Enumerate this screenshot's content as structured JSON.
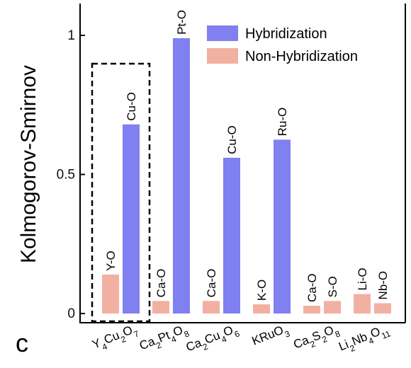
{
  "chart_data": {
    "type": "bar",
    "title": "",
    "panel_label": "c",
    "xlabel": "",
    "ylabel": "Kolmogorov-Smirnov",
    "ylim": [
      0,
      1.05
    ],
    "yticks": [
      0,
      0.5,
      1
    ],
    "ytick_labels": [
      "0",
      "0.5",
      "1"
    ],
    "categories": [
      {
        "parts": [
          [
            "Y",
            "n"
          ],
          [
            "4",
            "s"
          ],
          [
            "Cu",
            "n"
          ],
          [
            "2",
            "s"
          ],
          [
            "O",
            "n"
          ],
          [
            "7",
            "s"
          ]
        ],
        "text": "Y4Cu2O7"
      },
      {
        "parts": [
          [
            "Ca",
            "n"
          ],
          [
            "2",
            "s"
          ],
          [
            "Pt",
            "n"
          ],
          [
            "4",
            "s"
          ],
          [
            "O",
            "n"
          ],
          [
            "8",
            "s"
          ]
        ],
        "text": "Ca2Pt4O8"
      },
      {
        "parts": [
          [
            "Ca",
            "n"
          ],
          [
            "2",
            "s"
          ],
          [
            "Cu",
            "n"
          ],
          [
            "4",
            "s"
          ],
          [
            "O",
            "n"
          ],
          [
            "6",
            "s"
          ]
        ],
        "text": "Ca2Cu4O6"
      },
      {
        "parts": [
          [
            "KRuO",
            "n"
          ],
          [
            "3",
            "s"
          ]
        ],
        "text": "KRuO3"
      },
      {
        "parts": [
          [
            "Ca",
            "n"
          ],
          [
            "2",
            "s"
          ],
          [
            "S",
            "n"
          ],
          [
            "2",
            "s"
          ],
          [
            "O",
            "n"
          ],
          [
            "8",
            "s"
          ]
        ],
        "text": "Ca2S2O8"
      },
      {
        "parts": [
          [
            "Li",
            "n"
          ],
          [
            "2",
            "s"
          ],
          [
            "Nb",
            "n"
          ],
          [
            "4",
            "s"
          ],
          [
            "O",
            "n"
          ],
          [
            "11",
            "s"
          ]
        ],
        "text": "Li2Nb4O11"
      }
    ],
    "bars": [
      {
        "group": 0,
        "series": "Non-Hybridization",
        "label": "Y-O",
        "value": 0.14
      },
      {
        "group": 0,
        "series": "Hybridization",
        "label": "Cu-O",
        "value": 0.68
      },
      {
        "group": 1,
        "series": "Non-Hybridization",
        "label": "Ca-O",
        "value": 0.045
      },
      {
        "group": 1,
        "series": "Hybridization",
        "label": "Pt-O",
        "value": 0.99
      },
      {
        "group": 2,
        "series": "Non-Hybridization",
        "label": "Ca-O",
        "value": 0.045
      },
      {
        "group": 2,
        "series": "Hybridization",
        "label": "Cu-O",
        "value": 0.56
      },
      {
        "group": 3,
        "series": "Non-Hybridization",
        "label": "K-O",
        "value": 0.033
      },
      {
        "group": 3,
        "series": "Hybridization",
        "label": "Ru-O",
        "value": 0.625
      },
      {
        "group": 4,
        "series": "Non-Hybridization",
        "label": "Ca-O",
        "value": 0.028
      },
      {
        "group": 4,
        "series": "Non-Hybridization",
        "label": "S-O",
        "value": 0.045
      },
      {
        "group": 5,
        "series": "Non-Hybridization",
        "label": "Li-O",
        "value": 0.07
      },
      {
        "group": 5,
        "series": "Non-Hybridization",
        "label": "Nb-O",
        "value": 0.037
      }
    ],
    "series": [
      {
        "name": "Hybridization",
        "color": "#8080f0"
      },
      {
        "name": "Non-Hybridization",
        "color": "#f2b0a2"
      }
    ],
    "legend": "top-right",
    "highlight_group": 0,
    "grid": false
  }
}
